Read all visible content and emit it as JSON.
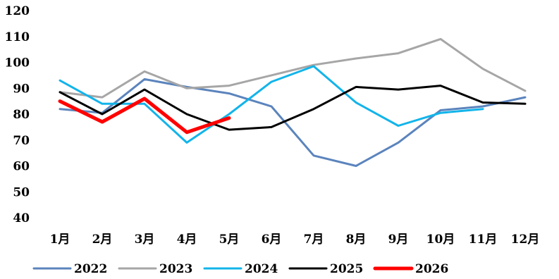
{
  "chart_data": {
    "type": "line",
    "categories": [
      "1月",
      "2月",
      "3月",
      "4月",
      "5月",
      "6月",
      "7月",
      "8月",
      "9月",
      "10月",
      "11月",
      "12月"
    ],
    "ylim": [
      40,
      120
    ],
    "yticks": [
      "40",
      "50",
      "60",
      "70",
      "80",
      "90",
      "100",
      "110",
      "120"
    ],
    "grid": false,
    "legend_position": "bottom",
    "series": [
      {
        "name": "2022",
        "color": "#5B84BD",
        "width": 3,
        "values": [
          82,
          80.5,
          93.5,
          90.5,
          88,
          83,
          64,
          60,
          69,
          81.5,
          83,
          86.5
        ]
      },
      {
        "name": "2023",
        "color": "#A6A6A6",
        "width": 3,
        "values": [
          88.5,
          86.5,
          96.5,
          90,
          91,
          95,
          99,
          101.5,
          103.5,
          109,
          97.5,
          89
        ]
      },
      {
        "name": "2024",
        "color": "#12B4EA",
        "width": 3,
        "values": [
          93,
          84,
          84,
          69,
          80,
          92.5,
          98.5,
          84.5,
          75.5,
          80.5,
          82,
          null
        ]
      },
      {
        "name": "2025",
        "color": "#000000",
        "width": 3,
        "values": [
          88.5,
          80,
          89.5,
          80,
          74,
          75,
          82,
          90.5,
          89.5,
          91,
          84.5,
          84
        ]
      },
      {
        "name": "2026",
        "color": "#FF0000",
        "width": 5,
        "values": [
          85,
          77,
          86,
          73,
          78.5,
          null,
          null,
          null,
          null,
          null,
          null,
          null
        ]
      }
    ]
  }
}
